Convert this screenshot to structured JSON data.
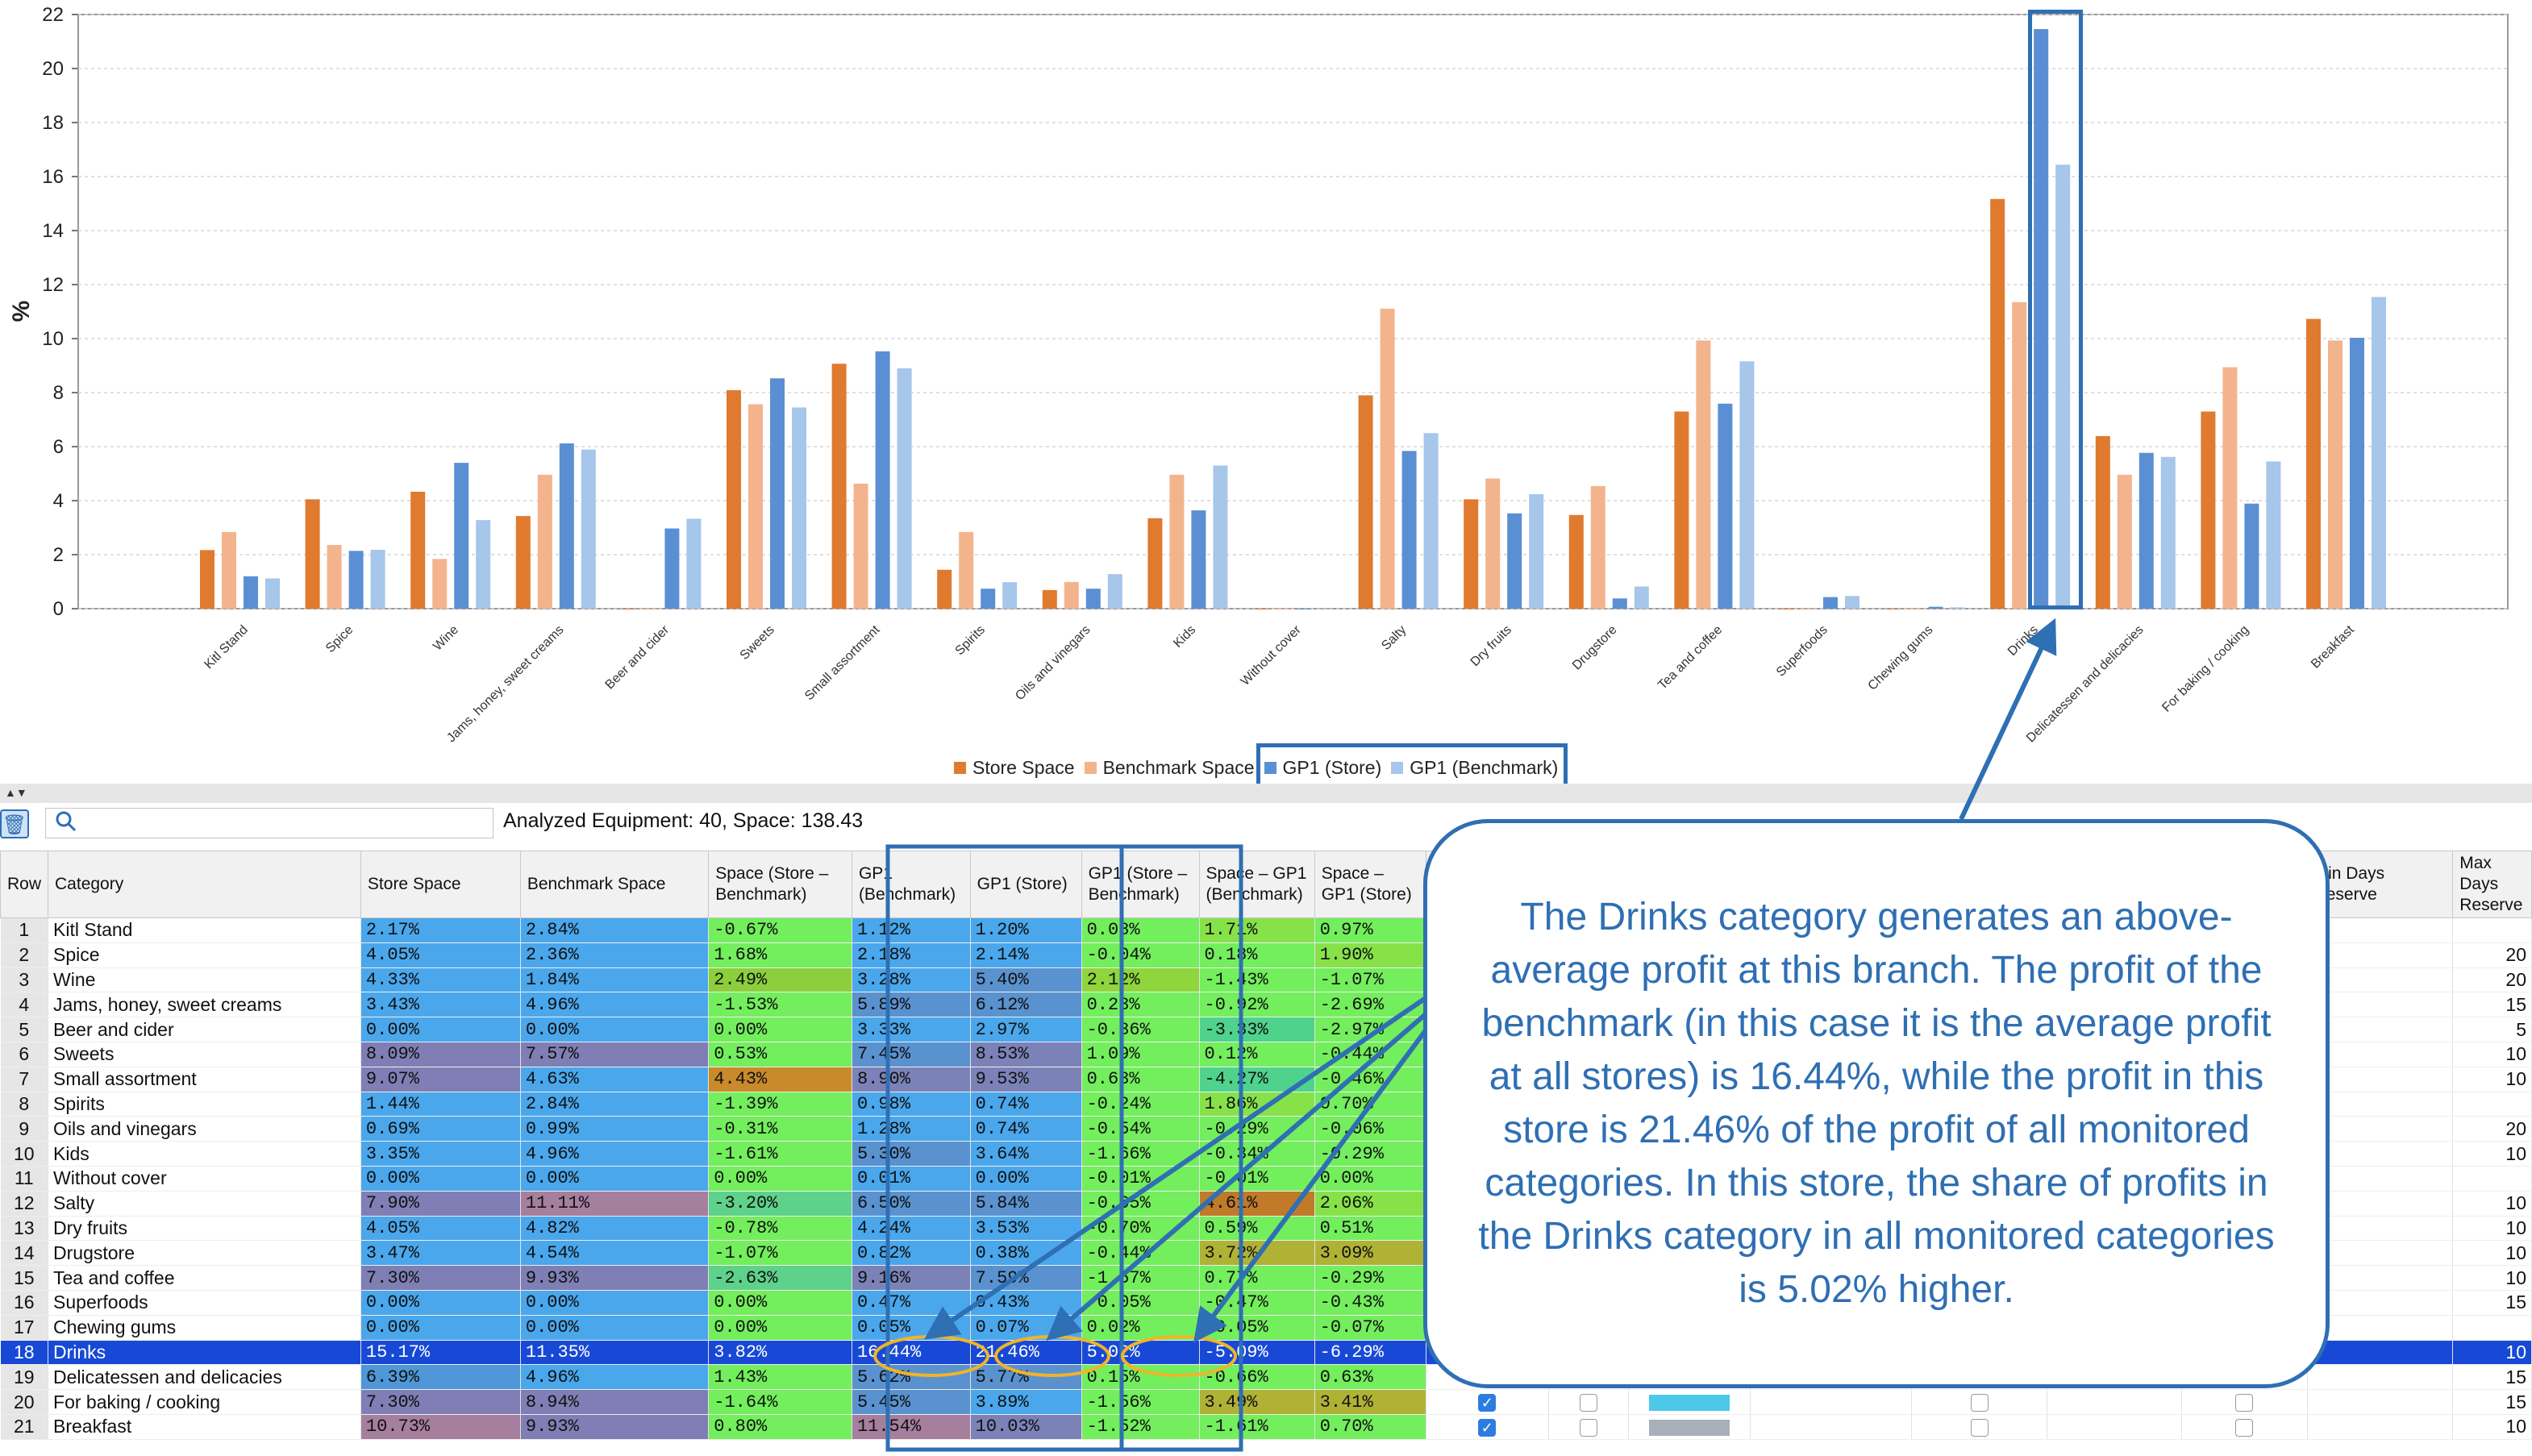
{
  "chart_data": {
    "type": "bar",
    "ylabel": "%",
    "ylim": [
      0,
      22
    ],
    "yticks": [
      0,
      2,
      4,
      6,
      8,
      10,
      12,
      14,
      16,
      18,
      20,
      22
    ],
    "grid": true,
    "legend_position": "bottom",
    "categories": [
      "Kitl Stand",
      "Spice",
      "Wine",
      "Jams, honey, sweet creams",
      "Beer and cider",
      "Sweets",
      "Small assortment",
      "Spirits",
      "Oils and vinegars",
      "Kids",
      "Without cover",
      "Salty",
      "Dry fruits",
      "Drugstore",
      "Tea and coffee",
      "Superfoods",
      "Chewing gums",
      "Drinks",
      "Delicatessen and delicacies",
      "For baking / cooking",
      "Breakfast"
    ],
    "series": [
      {
        "name": "Store Space",
        "color": "#e07a2f",
        "values": [
          2.17,
          4.05,
          4.33,
          3.43,
          0.0,
          8.09,
          9.07,
          1.44,
          0.69,
          3.35,
          0.0,
          7.9,
          4.05,
          3.47,
          7.3,
          0.0,
          0.0,
          15.17,
          6.39,
          7.3,
          10.73
        ]
      },
      {
        "name": "Benchmark Space",
        "color": "#f3b48d",
        "values": [
          2.84,
          2.36,
          1.84,
          4.96,
          0.0,
          7.57,
          4.63,
          2.84,
          0.99,
          4.96,
          0.0,
          11.11,
          4.82,
          4.54,
          9.93,
          0.0,
          0.0,
          11.35,
          4.96,
          8.94,
          9.93
        ]
      },
      {
        "name": "GP1 (Store)",
        "color": "#5b8fd4",
        "values": [
          1.2,
          2.14,
          5.4,
          6.12,
          2.97,
          8.53,
          9.53,
          0.74,
          0.74,
          3.64,
          0.0,
          5.84,
          3.53,
          0.38,
          7.59,
          0.43,
          0.07,
          21.46,
          5.77,
          3.89,
          10.03
        ]
      },
      {
        "name": "GP1 (Benchmark)",
        "color": "#a6c6ea",
        "values": [
          1.12,
          2.18,
          3.28,
          5.89,
          3.33,
          7.45,
          8.9,
          0.98,
          1.28,
          5.3,
          0.01,
          6.5,
          4.24,
          0.82,
          9.16,
          0.47,
          0.05,
          16.44,
          5.62,
          5.45,
          11.54
        ]
      }
    ]
  },
  "toolbar": {
    "analyzed": "Analyzed Equipment: 40, Space: 138.43",
    "search_placeholder": ""
  },
  "table": {
    "headers": {
      "row": "Row",
      "category": "Category",
      "store_space": "Store Space",
      "bench_space": "Benchmark Space",
      "space_diff": "Space (Store – Benchmark)",
      "gp1_bench": "GP1 (Benchmark)",
      "gp1_store": "GP1 (Store)",
      "gp1_diff": "GP1 (Store – Benchmark)",
      "space_gp1_bench": "Space – GP1 (Benchmark)",
      "space_gp1_store": "Space – GP1 (Store)",
      "min_days": "Min Days Reserve",
      "max_days": "Max Days Reserve"
    },
    "rows": [
      {
        "row": "1",
        "category": "Kitl Stand",
        "store_space": "2.17%",
        "bench_space": "2.84%",
        "space_diff": "-0.67%",
        "gp1_bench": "1.12%",
        "gp1_store": "1.20%",
        "gp1_diff": "0.08%",
        "sg1b": "1.71%",
        "sg1s": "0.97%",
        "min": "",
        "max": ""
      },
      {
        "row": "2",
        "category": "Spice",
        "store_space": "4.05%",
        "bench_space": "2.36%",
        "space_diff": "1.68%",
        "gp1_bench": "2.18%",
        "gp1_store": "2.14%",
        "gp1_diff": "-0.04%",
        "sg1b": "0.18%",
        "sg1s": "1.90%",
        "min": "",
        "max": "20"
      },
      {
        "row": "3",
        "category": "Wine",
        "store_space": "4.33%",
        "bench_space": "1.84%",
        "space_diff": "2.49%",
        "gp1_bench": "3.28%",
        "gp1_store": "5.40%",
        "gp1_diff": "2.12%",
        "sg1b": "-1.43%",
        "sg1s": "-1.07%",
        "min": "",
        "max": "20"
      },
      {
        "row": "4",
        "category": "Jams, honey, sweet creams",
        "store_space": "3.43%",
        "bench_space": "4.96%",
        "space_diff": "-1.53%",
        "gp1_bench": "5.89%",
        "gp1_store": "6.12%",
        "gp1_diff": "0.23%",
        "sg1b": "-0.92%",
        "sg1s": "-2.69%",
        "min": "",
        "max": "15"
      },
      {
        "row": "5",
        "category": "Beer and cider",
        "store_space": "0.00%",
        "bench_space": "0.00%",
        "space_diff": "0.00%",
        "gp1_bench": "3.33%",
        "gp1_store": "2.97%",
        "gp1_diff": "-0.36%",
        "sg1b": "-3.33%",
        "sg1s": "-2.97%",
        "min": "",
        "max": "5"
      },
      {
        "row": "6",
        "category": "Sweets",
        "store_space": "8.09%",
        "bench_space": "7.57%",
        "space_diff": "0.53%",
        "gp1_bench": "7.45%",
        "gp1_store": "8.53%",
        "gp1_diff": "1.09%",
        "sg1b": "0.12%",
        "sg1s": "-0.44%",
        "min": "",
        "max": "10"
      },
      {
        "row": "7",
        "category": "Small assortment",
        "store_space": "9.07%",
        "bench_space": "4.63%",
        "space_diff": "4.43%",
        "gp1_bench": "8.90%",
        "gp1_store": "9.53%",
        "gp1_diff": "0.63%",
        "sg1b": "-4.27%",
        "sg1s": "-0.46%",
        "min": "",
        "max": "10"
      },
      {
        "row": "8",
        "category": "Spirits",
        "store_space": "1.44%",
        "bench_space": "2.84%",
        "space_diff": "-1.39%",
        "gp1_bench": "0.98%",
        "gp1_store": "0.74%",
        "gp1_diff": "-0.24%",
        "sg1b": "1.86%",
        "sg1s": "0.70%",
        "min": "",
        "max": ""
      },
      {
        "row": "9",
        "category": "Oils and vinegars",
        "store_space": "0.69%",
        "bench_space": "0.99%",
        "space_diff": "-0.31%",
        "gp1_bench": "1.28%",
        "gp1_store": "0.74%",
        "gp1_diff": "-0.54%",
        "sg1b": "-0.29%",
        "sg1s": "-0.06%",
        "min": "",
        "max": "20"
      },
      {
        "row": "10",
        "category": "Kids",
        "store_space": "3.35%",
        "bench_space": "4.96%",
        "space_diff": "-1.61%",
        "gp1_bench": "5.30%",
        "gp1_store": "3.64%",
        "gp1_diff": "-1.66%",
        "sg1b": "-0.34%",
        "sg1s": "-0.29%",
        "min": "",
        "max": "10"
      },
      {
        "row": "11",
        "category": "Without cover",
        "store_space": "0.00%",
        "bench_space": "0.00%",
        "space_diff": "0.00%",
        "gp1_bench": "0.01%",
        "gp1_store": "0.00%",
        "gp1_diff": "-0.01%",
        "sg1b": "-0.01%",
        "sg1s": "0.00%",
        "min": "",
        "max": ""
      },
      {
        "row": "12",
        "category": "Salty",
        "store_space": "7.90%",
        "bench_space": "11.11%",
        "space_diff": "-3.20%",
        "gp1_bench": "6.50%",
        "gp1_store": "5.84%",
        "gp1_diff": "-0.65%",
        "sg1b": "4.61%",
        "sg1s": "2.06%",
        "min": "",
        "max": "10"
      },
      {
        "row": "13",
        "category": "Dry fruits",
        "store_space": "4.05%",
        "bench_space": "4.82%",
        "space_diff": "-0.78%",
        "gp1_bench": "4.24%",
        "gp1_store": "3.53%",
        "gp1_diff": "-0.70%",
        "sg1b": "0.59%",
        "sg1s": "0.51%",
        "min": "",
        "max": "10"
      },
      {
        "row": "14",
        "category": "Drugstore",
        "store_space": "3.47%",
        "bench_space": "4.54%",
        "space_diff": "-1.07%",
        "gp1_bench": "0.82%",
        "gp1_store": "0.38%",
        "gp1_diff": "-0.44%",
        "sg1b": "3.72%",
        "sg1s": "3.09%",
        "min": "",
        "max": "10"
      },
      {
        "row": "15",
        "category": "Tea and coffee",
        "store_space": "7.30%",
        "bench_space": "9.93%",
        "space_diff": "-2.63%",
        "gp1_bench": "9.16%",
        "gp1_store": "7.59%",
        "gp1_diff": "-1.57%",
        "sg1b": "0.77%",
        "sg1s": "-0.29%",
        "min": "",
        "max": "10"
      },
      {
        "row": "16",
        "category": "Superfoods",
        "store_space": "0.00%",
        "bench_space": "0.00%",
        "space_diff": "0.00%",
        "gp1_bench": "0.47%",
        "gp1_store": "0.43%",
        "gp1_diff": "-0.05%",
        "sg1b": "-0.47%",
        "sg1s": "-0.43%",
        "min": "",
        "max": "15"
      },
      {
        "row": "17",
        "category": "Chewing gums",
        "store_space": "0.00%",
        "bench_space": "0.00%",
        "space_diff": "0.00%",
        "gp1_bench": "0.05%",
        "gp1_store": "0.07%",
        "gp1_diff": "0.02%",
        "sg1b": "-0.05%",
        "sg1s": "-0.07%",
        "min": "",
        "max": ""
      },
      {
        "row": "18",
        "category": "Drinks",
        "store_space": "15.17%",
        "bench_space": "11.35%",
        "space_diff": "3.82%",
        "gp1_bench": "16.44%",
        "gp1_store": "21.46%",
        "gp1_diff": "5.02%",
        "sg1b": "-5.09%",
        "sg1s": "-6.29%",
        "min": "",
        "max": "10",
        "selected": true
      },
      {
        "row": "19",
        "category": "Delicatessen and delicacies",
        "store_space": "6.39%",
        "bench_space": "4.96%",
        "space_diff": "1.43%",
        "gp1_bench": "5.62%",
        "gp1_store": "5.77%",
        "gp1_diff": "0.15%",
        "sg1b": "-0.66%",
        "sg1s": "0.63%",
        "min": "",
        "max": "15"
      },
      {
        "row": "20",
        "category": "For baking / cooking",
        "store_space": "7.30%",
        "bench_space": "8.94%",
        "space_diff": "-1.64%",
        "gp1_bench": "5.45%",
        "gp1_store": "3.89%",
        "gp1_diff": "-1.56%",
        "sg1b": "3.49%",
        "sg1s": "3.41%",
        "min": "",
        "max": "15"
      },
      {
        "row": "21",
        "category": "Breakfast",
        "store_space": "10.73%",
        "bench_space": "9.93%",
        "space_diff": "0.80%",
        "gp1_bench": "11.54%",
        "gp1_store": "10.03%",
        "gp1_diff": "-1.52%",
        "sg1b": "-1.61%",
        "sg1s": "0.70%",
        "min": "",
        "max": "10"
      }
    ]
  },
  "callout": {
    "text": "The Drinks category generates an above-average profit at this branch. The profit of the benchmark (in this case it is the average profit at all stores) is 16.44%, while the profit in this store is 21.46% of the profit of all monitored categories. In this store, the share of profits in the Drinks category in all monitored categories is 5.02% higher.",
    "color": "#2f6fb3"
  }
}
